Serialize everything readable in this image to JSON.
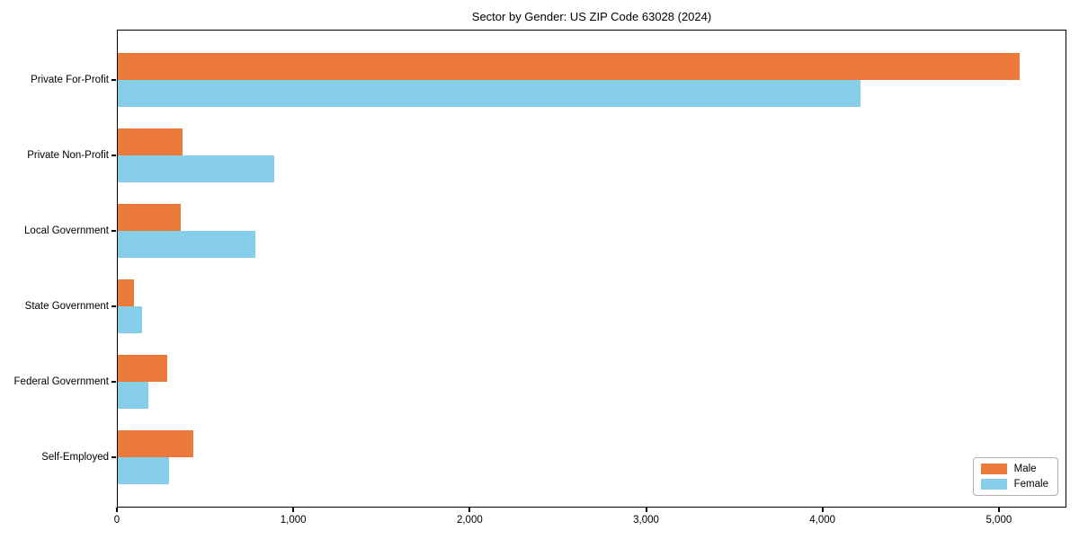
{
  "title": "Sector by Gender: US ZIP Code 63028 (2024)",
  "colors": {
    "male": "#EB7A3B",
    "female": "#87CEEB",
    "axis": "#000000",
    "legend_border": "#b0b0b0",
    "background": "#ffffff"
  },
  "chart_data": {
    "type": "bar",
    "orientation": "horizontal",
    "title": "Sector by Gender: US ZIP Code 63028 (2024)",
    "xlabel": "",
    "ylabel": "",
    "categories": [
      "Private For-Profit",
      "Private Non-Profit",
      "Local Government",
      "State Government",
      "Federal Government",
      "Self-Employed"
    ],
    "series": [
      {
        "name": "Male",
        "color": "#EB7A3B",
        "values": [
          5120,
          370,
          360,
          90,
          280,
          430
        ]
      },
      {
        "name": "Female",
        "color": "#87CEEB",
        "values": [
          4220,
          890,
          780,
          140,
          175,
          290
        ]
      }
    ],
    "xlim": [
      0,
      5383
    ],
    "xticks": [
      0,
      1000,
      2000,
      3000,
      4000,
      5000
    ],
    "xtick_labels": [
      "0",
      "1,000",
      "2,000",
      "3,000",
      "4,000",
      "5,000"
    ],
    "grid": false,
    "legend_position": "lower right"
  },
  "legend": {
    "male_label": "Male",
    "female_label": "Female"
  }
}
